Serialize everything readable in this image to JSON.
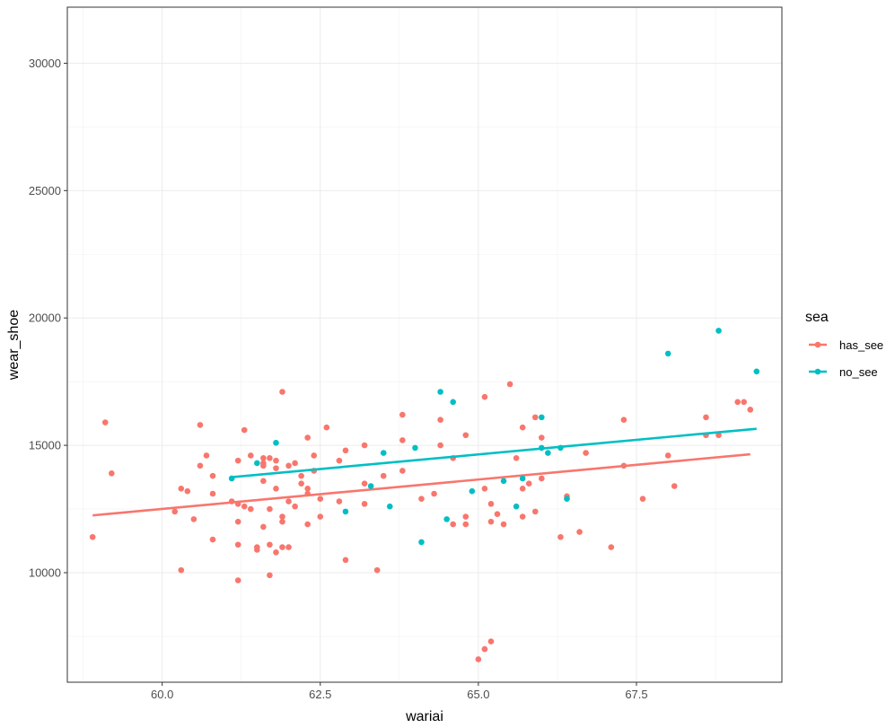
{
  "chart_data": {
    "type": "scatter",
    "xlabel": "wariai",
    "ylabel": "wear_shoe",
    "xlim": [
      58.5,
      69.8
    ],
    "ylim": [
      5700,
      32200
    ],
    "x_ticks": [
      60.0,
      62.5,
      65.0,
      67.5
    ],
    "x_tick_labels": [
      "60.0",
      "62.5",
      "65.0",
      "67.5"
    ],
    "y_ticks": [
      10000,
      15000,
      20000,
      25000,
      30000
    ],
    "y_tick_labels": [
      "10000",
      "15000",
      "20000",
      "25000",
      "30000"
    ],
    "grid": true,
    "legend": {
      "title": "sea",
      "position": "right"
    },
    "series": [
      {
        "name": "has_see",
        "color": "#F8766D",
        "points": [
          [
            58.9,
            11400
          ],
          [
            59.1,
            15900
          ],
          [
            59.2,
            13900
          ],
          [
            60.2,
            12400
          ],
          [
            60.3,
            13300
          ],
          [
            60.3,
            10100
          ],
          [
            60.4,
            13200
          ],
          [
            60.5,
            12100
          ],
          [
            60.6,
            14200
          ],
          [
            60.6,
            15800
          ],
          [
            60.7,
            14600
          ],
          [
            60.8,
            11300
          ],
          [
            60.8,
            13800
          ],
          [
            60.8,
            13100
          ],
          [
            61.1,
            12800
          ],
          [
            61.2,
            14400
          ],
          [
            61.2,
            12700
          ],
          [
            61.2,
            12000
          ],
          [
            61.2,
            11100
          ],
          [
            61.2,
            9700
          ],
          [
            61.3,
            15600
          ],
          [
            61.3,
            12600
          ],
          [
            61.4,
            14600
          ],
          [
            61.4,
            12500
          ],
          [
            61.5,
            11000
          ],
          [
            61.5,
            10900
          ],
          [
            61.6,
            14500
          ],
          [
            61.6,
            14300
          ],
          [
            61.6,
            14200
          ],
          [
            61.6,
            13600
          ],
          [
            61.6,
            11800
          ],
          [
            61.7,
            14500
          ],
          [
            61.7,
            12500
          ],
          [
            61.7,
            11100
          ],
          [
            61.7,
            9900
          ],
          [
            61.8,
            14400
          ],
          [
            61.8,
            14100
          ],
          [
            61.8,
            13300
          ],
          [
            61.8,
            10800
          ],
          [
            61.9,
            17100
          ],
          [
            61.9,
            12200
          ],
          [
            61.9,
            12000
          ],
          [
            61.9,
            11000
          ],
          [
            62.0,
            14200
          ],
          [
            62.0,
            12800
          ],
          [
            62.0,
            11000
          ],
          [
            62.1,
            14300
          ],
          [
            62.1,
            12600
          ],
          [
            62.2,
            13800
          ],
          [
            62.2,
            13500
          ],
          [
            62.3,
            15300
          ],
          [
            62.3,
            13300
          ],
          [
            62.3,
            13100
          ],
          [
            62.3,
            11900
          ],
          [
            62.4,
            14600
          ],
          [
            62.4,
            14000
          ],
          [
            62.5,
            12900
          ],
          [
            62.5,
            12200
          ],
          [
            62.6,
            15700
          ],
          [
            62.8,
            14400
          ],
          [
            62.8,
            12800
          ],
          [
            62.9,
            14800
          ],
          [
            62.9,
            10500
          ],
          [
            63.2,
            15000
          ],
          [
            63.2,
            13500
          ],
          [
            63.2,
            12700
          ],
          [
            63.4,
            10100
          ],
          [
            63.5,
            13800
          ],
          [
            63.8,
            16200
          ],
          [
            63.8,
            15200
          ],
          [
            63.8,
            14000
          ],
          [
            64.1,
            12900
          ],
          [
            64.3,
            13100
          ],
          [
            64.4,
            16000
          ],
          [
            64.4,
            15000
          ],
          [
            64.6,
            14500
          ],
          [
            64.6,
            11900
          ],
          [
            64.8,
            15400
          ],
          [
            64.8,
            12200
          ],
          [
            64.8,
            11900
          ],
          [
            65.0,
            6600
          ],
          [
            65.1,
            16900
          ],
          [
            65.1,
            13300
          ],
          [
            65.1,
            7000
          ],
          [
            65.2,
            12700
          ],
          [
            65.2,
            12000
          ],
          [
            65.2,
            7300
          ],
          [
            65.3,
            12300
          ],
          [
            65.4,
            11900
          ],
          [
            65.5,
            17400
          ],
          [
            65.6,
            14500
          ],
          [
            65.7,
            15700
          ],
          [
            65.7,
            13300
          ],
          [
            65.7,
            12200
          ],
          [
            65.8,
            13500
          ],
          [
            65.9,
            16100
          ],
          [
            65.9,
            12400
          ],
          [
            66.0,
            15300
          ],
          [
            66.0,
            13700
          ],
          [
            66.3,
            11400
          ],
          [
            66.4,
            13000
          ],
          [
            66.6,
            11600
          ],
          [
            66.7,
            14700
          ],
          [
            67.1,
            11000
          ],
          [
            67.3,
            16000
          ],
          [
            67.3,
            14200
          ],
          [
            67.6,
            12900
          ],
          [
            68.0,
            14600
          ],
          [
            68.1,
            13400
          ],
          [
            68.6,
            16100
          ],
          [
            68.6,
            15400
          ],
          [
            68.8,
            15400
          ],
          [
            69.1,
            16700
          ],
          [
            69.2,
            16700
          ],
          [
            69.3,
            16400
          ]
        ],
        "trend": {
          "x": [
            58.9,
            69.3
          ],
          "y": [
            12250,
            14650
          ]
        }
      },
      {
        "name": "no_see",
        "color": "#00BFC4",
        "points": [
          [
            61.1,
            13700
          ],
          [
            61.5,
            14300
          ],
          [
            61.8,
            15100
          ],
          [
            62.9,
            12400
          ],
          [
            63.3,
            13400
          ],
          [
            63.5,
            14700
          ],
          [
            63.6,
            12600
          ],
          [
            64.0,
            14900
          ],
          [
            64.1,
            11200
          ],
          [
            64.4,
            17100
          ],
          [
            64.5,
            12100
          ],
          [
            64.6,
            16700
          ],
          [
            64.9,
            13200
          ],
          [
            65.4,
            13600
          ],
          [
            65.6,
            12600
          ],
          [
            65.7,
            13700
          ],
          [
            66.0,
            16100
          ],
          [
            66.0,
            14900
          ],
          [
            66.1,
            14700
          ],
          [
            66.3,
            14900
          ],
          [
            66.4,
            12900
          ],
          [
            68.0,
            18600
          ],
          [
            68.8,
            19500
          ],
          [
            69.4,
            17900
          ]
        ],
        "trend": {
          "x": [
            61.1,
            69.4
          ],
          "y": [
            13750,
            15650
          ]
        }
      }
    ]
  }
}
